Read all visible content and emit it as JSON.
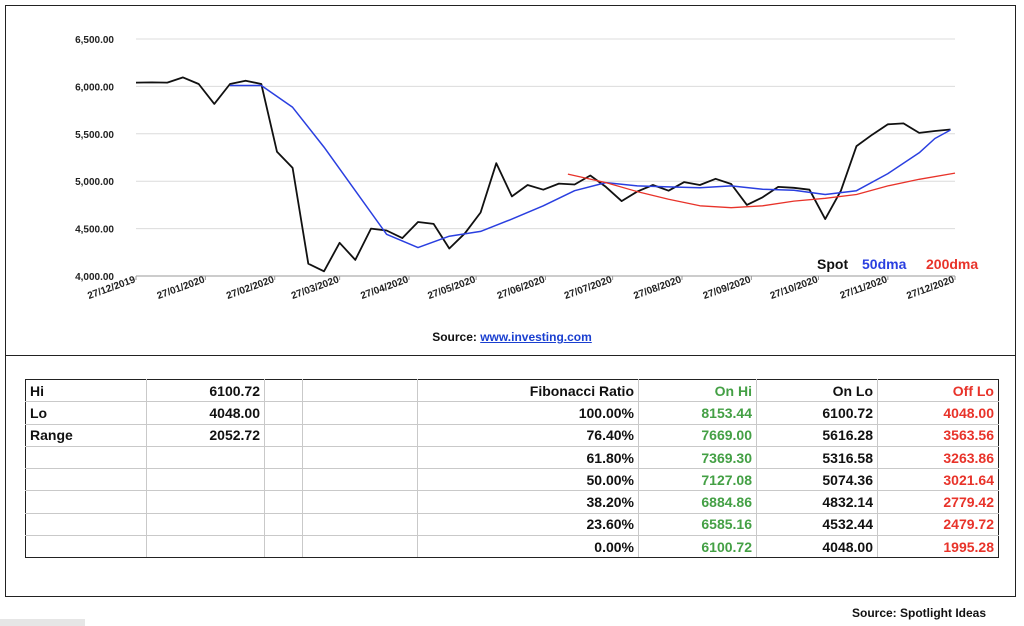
{
  "chart_data": {
    "type": "line",
    "ylim": [
      4000,
      6500
    ],
    "yticks": [
      "4,000.00",
      "4,500.00",
      "5,000.00",
      "5,500.00",
      "6,000.00",
      "6,500.00"
    ],
    "xlim": [
      "2019-12-27",
      "2020-12-27"
    ],
    "xticks": [
      "27/12/2019",
      "27/01/2020",
      "27/02/2020",
      "27/03/2020",
      "27/04/2020",
      "27/05/2020",
      "27/06/2020",
      "27/07/2020",
      "27/08/2020",
      "27/09/2020",
      "27/10/2020",
      "27/11/2020",
      "27/12/2020"
    ],
    "grid": "horizontal",
    "legend_position": "bottom-right",
    "series": [
      {
        "name": "Spot",
        "color": "#111111",
        "points": [
          [
            "2019-12-27",
            6040
          ],
          [
            "2020-01-03",
            6042
          ],
          [
            "2020-01-10",
            6040
          ],
          [
            "2020-01-17",
            6095
          ],
          [
            "2020-01-24",
            6025
          ],
          [
            "2020-01-31",
            5815
          ],
          [
            "2020-02-07",
            6025
          ],
          [
            "2020-02-14",
            6060
          ],
          [
            "2020-02-21",
            6025
          ],
          [
            "2020-02-28",
            5310
          ],
          [
            "2020-03-06",
            5140
          ],
          [
            "2020-03-13",
            4130
          ],
          [
            "2020-03-20",
            4050
          ],
          [
            "2020-03-27",
            4350
          ],
          [
            "2020-04-03",
            4170
          ],
          [
            "2020-04-10",
            4500
          ],
          [
            "2020-04-17",
            4480
          ],
          [
            "2020-04-24",
            4400
          ],
          [
            "2020-05-01",
            4570
          ],
          [
            "2020-05-08",
            4550
          ],
          [
            "2020-05-15",
            4290
          ],
          [
            "2020-05-22",
            4450
          ],
          [
            "2020-05-29",
            4670
          ],
          [
            "2020-06-05",
            5190
          ],
          [
            "2020-06-12",
            4840
          ],
          [
            "2020-06-19",
            4960
          ],
          [
            "2020-06-26",
            4910
          ],
          [
            "2020-07-03",
            4975
          ],
          [
            "2020-07-10",
            4965
          ],
          [
            "2020-07-17",
            5060
          ],
          [
            "2020-07-24",
            4940
          ],
          [
            "2020-07-31",
            4790
          ],
          [
            "2020-08-07",
            4890
          ],
          [
            "2020-08-14",
            4960
          ],
          [
            "2020-08-21",
            4900
          ],
          [
            "2020-08-28",
            4990
          ],
          [
            "2020-09-04",
            4960
          ],
          [
            "2020-09-11",
            5025
          ],
          [
            "2020-09-18",
            4970
          ],
          [
            "2020-09-25",
            4750
          ],
          [
            "2020-10-02",
            4830
          ],
          [
            "2020-10-09",
            4940
          ],
          [
            "2020-10-16",
            4930
          ],
          [
            "2020-10-23",
            4910
          ],
          [
            "2020-10-30",
            4600
          ],
          [
            "2020-11-06",
            4900
          ],
          [
            "2020-11-13",
            5370
          ],
          [
            "2020-11-20",
            5490
          ],
          [
            "2020-11-27",
            5600
          ],
          [
            "2020-12-04",
            5610
          ],
          [
            "2020-12-11",
            5510
          ],
          [
            "2020-12-18",
            5530
          ],
          [
            "2020-12-25",
            5545
          ]
        ]
      },
      {
        "name": "50dma",
        "color": "#2a3fe0",
        "points": [
          [
            "2020-02-07",
            6010
          ],
          [
            "2020-02-21",
            6010
          ],
          [
            "2020-03-06",
            5780
          ],
          [
            "2020-03-20",
            5360
          ],
          [
            "2020-04-03",
            4900
          ],
          [
            "2020-04-17",
            4440
          ],
          [
            "2020-05-01",
            4300
          ],
          [
            "2020-05-15",
            4420
          ],
          [
            "2020-05-29",
            4470
          ],
          [
            "2020-06-12",
            4600
          ],
          [
            "2020-06-26",
            4740
          ],
          [
            "2020-07-10",
            4900
          ],
          [
            "2020-07-24",
            4985
          ],
          [
            "2020-08-07",
            4950
          ],
          [
            "2020-08-21",
            4940
          ],
          [
            "2020-09-04",
            4930
          ],
          [
            "2020-09-18",
            4950
          ],
          [
            "2020-10-02",
            4915
          ],
          [
            "2020-10-16",
            4905
          ],
          [
            "2020-10-30",
            4860
          ],
          [
            "2020-11-13",
            4900
          ],
          [
            "2020-11-27",
            5080
          ],
          [
            "2020-12-11",
            5300
          ],
          [
            "2020-12-18",
            5450
          ],
          [
            "2020-12-25",
            5540
          ]
        ]
      },
      {
        "name": "200dma",
        "color": "#e8332a",
        "points": [
          [
            "2020-07-07",
            5075
          ],
          [
            "2020-07-24",
            4985
          ],
          [
            "2020-08-07",
            4890
          ],
          [
            "2020-08-21",
            4810
          ],
          [
            "2020-09-04",
            4740
          ],
          [
            "2020-09-18",
            4720
          ],
          [
            "2020-10-02",
            4740
          ],
          [
            "2020-10-16",
            4790
          ],
          [
            "2020-10-30",
            4820
          ],
          [
            "2020-11-13",
            4860
          ],
          [
            "2020-11-27",
            4950
          ],
          [
            "2020-12-11",
            5020
          ],
          [
            "2020-12-27",
            5085
          ]
        ]
      }
    ]
  },
  "source_chart": {
    "label": "Source:",
    "link": "www.investing.com"
  },
  "table": {
    "summary": [
      {
        "label": "Hi",
        "value": "6100.72"
      },
      {
        "label": "Lo",
        "value": "4048.00"
      },
      {
        "label": "Range",
        "value": "2052.72"
      }
    ],
    "headers": {
      "ratio": "Fibonacci  Ratio",
      "on_hi": "On Hi",
      "on_lo": "On Lo",
      "off_lo": "Off Lo"
    },
    "rows": [
      {
        "ratio": "100.00%",
        "on_hi": "8153.44",
        "on_lo": "6100.72",
        "off_lo": "4048.00"
      },
      {
        "ratio": "76.40%",
        "on_hi": "7669.00",
        "on_lo": "5616.28",
        "off_lo": "3563.56"
      },
      {
        "ratio": "61.80%",
        "on_hi": "7369.30",
        "on_lo": "5316.58",
        "off_lo": "3263.86"
      },
      {
        "ratio": "50.00%",
        "on_hi": "7127.08",
        "on_lo": "5074.36",
        "off_lo": "3021.64"
      },
      {
        "ratio": "38.20%",
        "on_hi": "6884.86",
        "on_lo": "4832.14",
        "off_lo": "2779.42"
      },
      {
        "ratio": "23.60%",
        "on_hi": "6585.16",
        "on_lo": "4532.44",
        "off_lo": "2479.72"
      },
      {
        "ratio": "0.00%",
        "on_hi": "6100.72",
        "on_lo": "4048.00",
        "off_lo": "1995.28"
      }
    ]
  },
  "source_bottom": "Source: Spotlight Ideas",
  "colors": {
    "green": "#44a045",
    "red": "#e8332a",
    "blue": "#2a3fe0"
  }
}
